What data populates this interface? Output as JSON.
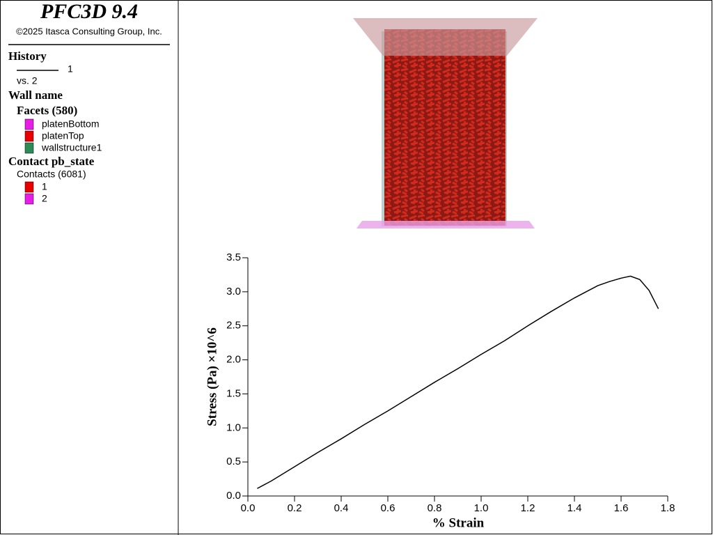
{
  "header": {
    "title": "PFC3D 9.4",
    "copyright": "©2025 Itasca Consulting Group, Inc."
  },
  "legend": {
    "history_title": "History",
    "history_item": "1",
    "history_vs": "vs. 2",
    "wall_title": "Wall name",
    "facets_title": "Facets (580)",
    "facets": [
      {
        "name": "platenBottom",
        "color": "#e81ee8"
      },
      {
        "name": "platenTop",
        "color": "#e80000"
      },
      {
        "name": "wallstructure1",
        "color": "#2e8b57"
      }
    ],
    "contact_title": "Contact pb_state",
    "contacts_title": "Contacts (6081)",
    "contacts": [
      {
        "name": "1",
        "color": "#e80000"
      },
      {
        "name": "2",
        "color": "#e81ee8"
      }
    ]
  },
  "chart_data": {
    "type": "line",
    "xlabel": "% Strain",
    "ylabel": "Stress (Pa) ×10^6",
    "x": [
      0.04,
      0.1,
      0.2,
      0.3,
      0.4,
      0.5,
      0.6,
      0.7,
      0.8,
      0.9,
      1.0,
      1.1,
      1.2,
      1.3,
      1.4,
      1.5,
      1.55,
      1.6,
      1.64,
      1.68,
      1.72,
      1.76
    ],
    "series": [
      {
        "name": "1",
        "color": "#000000",
        "values": [
          0.11,
          0.22,
          0.43,
          0.64,
          0.84,
          1.05,
          1.25,
          1.46,
          1.67,
          1.87,
          2.08,
          2.28,
          2.5,
          2.71,
          2.91,
          3.09,
          3.15,
          3.2,
          3.23,
          3.18,
          3.02,
          2.75
        ]
      }
    ],
    "xlim": [
      0,
      1.8
    ],
    "ylim": [
      0,
      3.5
    ],
    "xticks": [
      {
        "value": 0,
        "label": "0.0"
      },
      {
        "value": 0.2,
        "label": "0.2"
      },
      {
        "value": 0.4,
        "label": "0.4"
      },
      {
        "value": 0.6,
        "label": "0.6"
      },
      {
        "value": 0.8,
        "label": "0.8"
      },
      {
        "value": 1.0,
        "label": "1.0"
      },
      {
        "value": 1.2,
        "label": "1.2"
      },
      {
        "value": 1.4,
        "label": "1.4"
      },
      {
        "value": 1.6,
        "label": "1.6"
      },
      {
        "value": 1.8,
        "label": "1.8"
      }
    ],
    "yticks": [
      {
        "value": 0,
        "label": "0.0"
      },
      {
        "value": 0.5,
        "label": "0.5"
      },
      {
        "value": 1.0,
        "label": "1.0"
      },
      {
        "value": 1.5,
        "label": "1.5"
      },
      {
        "value": 2.0,
        "label": "2.0"
      },
      {
        "value": 2.5,
        "label": "2.5"
      },
      {
        "value": 3.0,
        "label": "3.0"
      },
      {
        "value": 3.5,
        "label": "3.5"
      }
    ]
  }
}
